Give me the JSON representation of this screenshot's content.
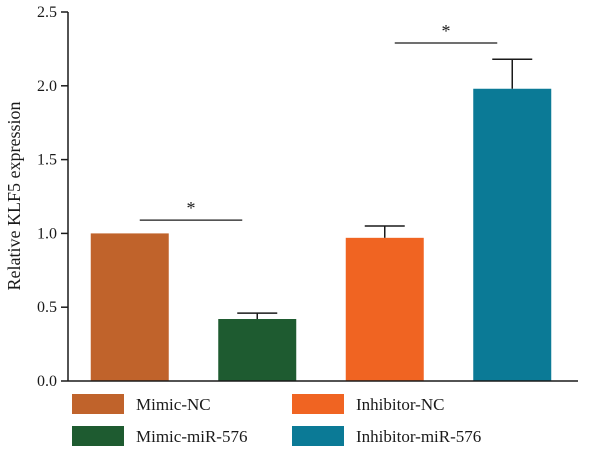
{
  "chart_data": {
    "type": "bar",
    "title": "",
    "xlabel": "",
    "ylabel": "Relative KLF5 expression",
    "ylim": [
      0,
      2.5
    ],
    "yticks": [
      "0.0",
      "0.5",
      "1.0",
      "1.5",
      "2.0",
      "2.5"
    ],
    "grid": false,
    "legend_position": "bottom",
    "categories": [
      "Mimic-NC",
      "Mimic-miR-576",
      "Inhibitor-NC",
      "Inhibitor-miR-576"
    ],
    "values": [
      1.0,
      0.42,
      0.97,
      1.98
    ],
    "errors": [
      0,
      0.04,
      0.08,
      0.2
    ],
    "colors": [
      "#C0632B",
      "#1E5B30",
      "#F06422",
      "#0B7A96"
    ],
    "significance": [
      {
        "between": [
          0,
          1
        ],
        "label": "*",
        "y": 1.09
      },
      {
        "between": [
          2,
          3
        ],
        "label": "*",
        "y": 2.29
      }
    ]
  }
}
